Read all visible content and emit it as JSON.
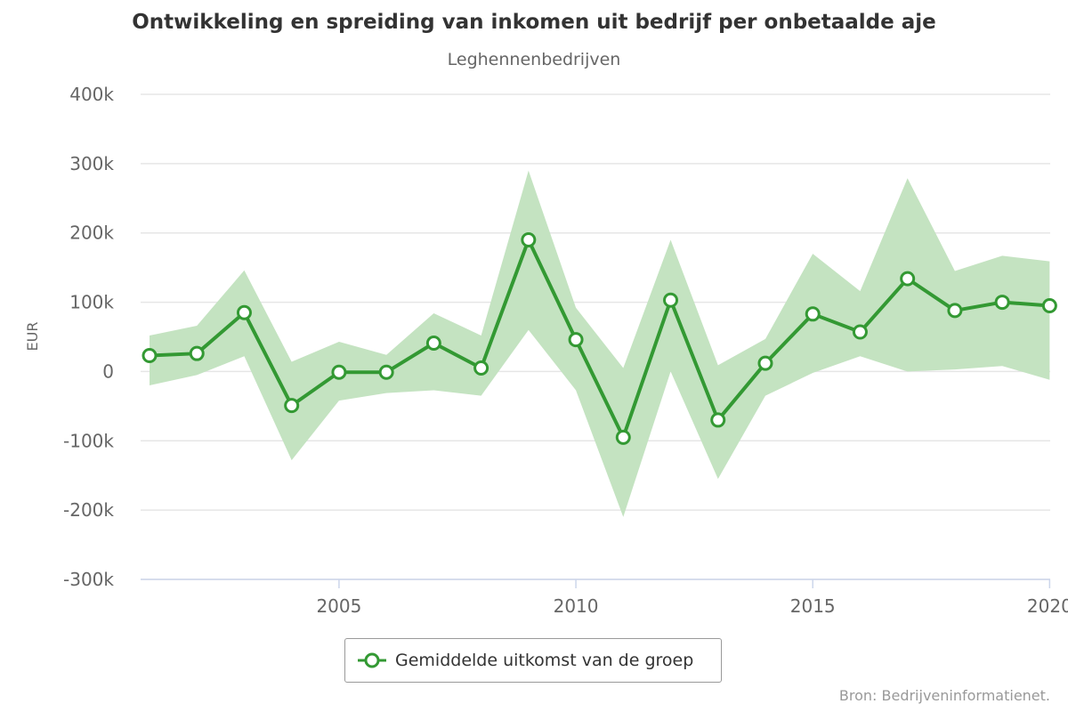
{
  "chart_data": {
    "type": "line",
    "title": "Ontwikkeling en spreiding van inkomen uit bedrijf per onbetaalde aje",
    "subtitle": "Leghennenbedrijven",
    "ylabel": "EUR",
    "xlabel": "",
    "x": [
      2001,
      2002,
      2003,
      2004,
      2005,
      2006,
      2007,
      2008,
      2009,
      2010,
      2011,
      2012,
      2013,
      2014,
      2015,
      2016,
      2017,
      2018,
      2019,
      2020
    ],
    "ylim": [
      -300000,
      400000
    ],
    "yticks": [
      {
        "value": 400000,
        "label": "400k"
      },
      {
        "value": 300000,
        "label": "300k"
      },
      {
        "value": 200000,
        "label": "200k"
      },
      {
        "value": 100000,
        "label": "100k"
      },
      {
        "value": 0,
        "label": "0"
      },
      {
        "value": -100000,
        "label": "-100k"
      },
      {
        "value": -200000,
        "label": "-200k"
      },
      {
        "value": -300000,
        "label": "-300k"
      }
    ],
    "xticks": [
      {
        "value": 2005,
        "label": "2005"
      },
      {
        "value": 2010,
        "label": "2010"
      },
      {
        "value": 2015,
        "label": "2015"
      },
      {
        "value": 2020,
        "label": "2020"
      }
    ],
    "series": [
      {
        "name": "Gemiddelde uitkomst van de groep",
        "type": "line",
        "color": "#339933",
        "values": [
          23000,
          26000,
          85000,
          -49000,
          -1000,
          -1000,
          41000,
          5000,
          190000,
          46000,
          -95000,
          103000,
          -70000,
          12000,
          83000,
          57000,
          134000,
          88000,
          100000,
          95000
        ]
      },
      {
        "type": "arearange",
        "color": "#c4e3c1",
        "low": [
          -20000,
          -5000,
          22000,
          -128000,
          -42000,
          -31000,
          -27000,
          -35000,
          60000,
          -27000,
          -210000,
          0,
          -155000,
          -35000,
          -2000,
          22000,
          0,
          3000,
          8000,
          -12000
        ],
        "high": [
          52000,
          66000,
          146000,
          14000,
          43000,
          24000,
          84000,
          52000,
          290000,
          92000,
          5000,
          190000,
          9000,
          47000,
          170000,
          116000,
          279000,
          145000,
          167000,
          159000
        ]
      }
    ],
    "grid": true,
    "legend_position": "bottom-center"
  },
  "legend": {
    "label": "Gemiddelde uitkomst van de groep"
  },
  "credits": "Bron: Bedrijveninformatienet."
}
